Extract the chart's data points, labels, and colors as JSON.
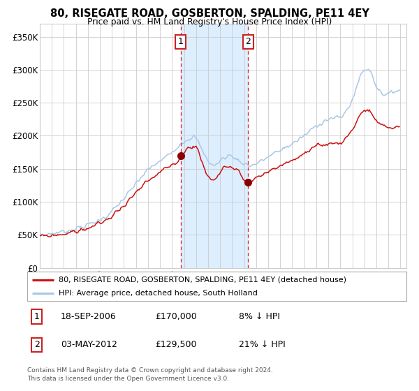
{
  "title": "80, RISEGATE ROAD, GOSBERTON, SPALDING, PE11 4EY",
  "subtitle": "Price paid vs. HM Land Registry's House Price Index (HPI)",
  "hpi_label": "HPI: Average price, detached house, South Holland",
  "property_label": "80, RISEGATE ROAD, GOSBERTON, SPALDING, PE11 4EY (detached house)",
  "sale1_date": "18-SEP-2006",
  "sale1_price": 170000,
  "sale1_pct": "8%",
  "sale2_date": "03-MAY-2012",
  "sale2_price": 129500,
  "sale2_pct": "21%",
  "footnote_line1": "Contains HM Land Registry data © Crown copyright and database right 2024.",
  "footnote_line2": "This data is licensed under the Open Government Licence v3.0.",
  "hpi_color": "#aac8e8",
  "property_color": "#cc1111",
  "sale_marker_color": "#880000",
  "vline_color": "#dd2222",
  "shade_color": "#ddeeff",
  "chart_bg": "#ffffff",
  "grid_color": "#cccccc",
  "ylim_max": 370000,
  "yticks": [
    0,
    50000,
    100000,
    150000,
    200000,
    250000,
    300000,
    350000
  ],
  "ytick_labels": [
    "£0",
    "£50K",
    "£100K",
    "£150K",
    "£200K",
    "£250K",
    "£300K",
    "£350K"
  ],
  "sale1_x": 2006.71,
  "sale2_x": 2012.33,
  "xmin": 1995,
  "xmax": 2025.5
}
